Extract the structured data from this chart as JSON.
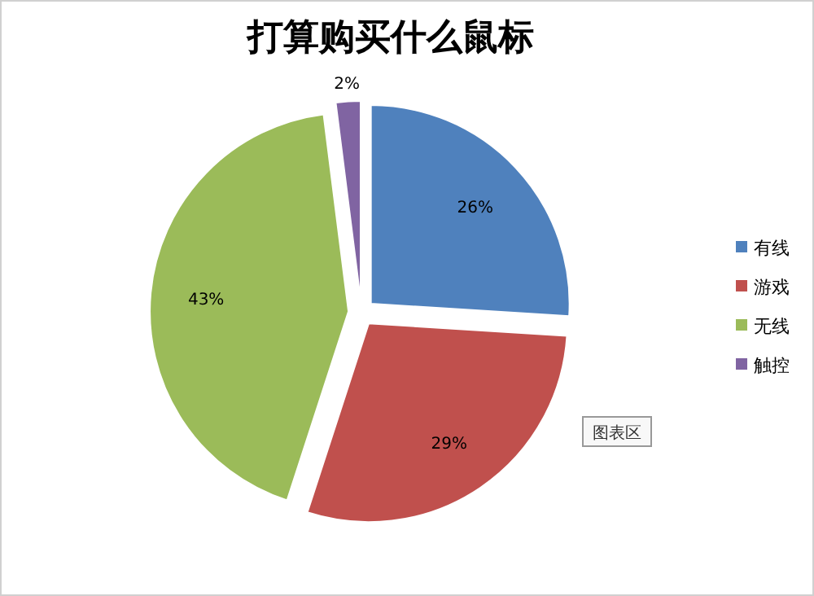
{
  "chart_data": {
    "type": "pie",
    "title": "打算购买什么鼠标",
    "categories": [
      "有线",
      "游戏",
      "无线",
      "触控"
    ],
    "values": [
      26,
      29,
      43,
      2
    ],
    "colors": [
      "#4f81bd",
      "#c0504d",
      "#9bbb59",
      "#8064a2"
    ],
    "value_labels": [
      "26%",
      "29%",
      "43%",
      "2%"
    ],
    "legend": "right",
    "annotations": [
      "图表区"
    ]
  }
}
